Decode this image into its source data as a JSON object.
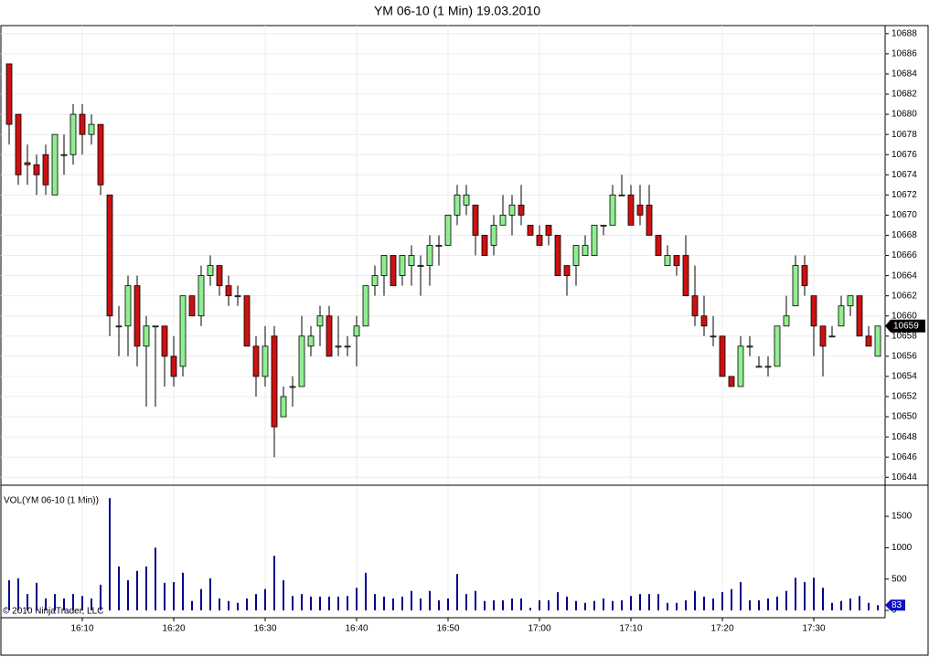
{
  "chart_data": [
    {
      "type": "candlestick",
      "title": "YM 06-10 (1 Min)  19.03.2010",
      "categories": [
        null,
        null,
        null,
        null,
        null,
        null,
        null,
        null,
        "16:10",
        null,
        null,
        null,
        null,
        null,
        null,
        null,
        null,
        null,
        "16:20",
        null,
        null,
        null,
        null,
        null,
        null,
        null,
        null,
        null,
        "16:30",
        null,
        null,
        null,
        null,
        null,
        null,
        null,
        null,
        null,
        "16:40",
        null,
        null,
        null,
        null,
        null,
        null,
        null,
        null,
        null,
        "16:50",
        null,
        null,
        null,
        null,
        null,
        null,
        null,
        null,
        null,
        "17:00",
        null,
        null,
        null,
        null,
        null,
        null,
        null,
        null,
        null,
        "17:10",
        null,
        null,
        null,
        null,
        null,
        null,
        null,
        null,
        null,
        "17:20",
        null,
        null,
        null,
        null,
        null,
        null,
        null,
        null,
        null,
        "17:30",
        null,
        null,
        null,
        null,
        null,
        null,
        null
      ],
      "open": [
        10685,
        10680,
        10675.2,
        10675,
        10676,
        10672,
        10676,
        10676,
        10680,
        10678,
        10679,
        10672,
        10659,
        10659,
        10663,
        10657,
        10659,
        10659,
        10656,
        10655,
        10662,
        10660,
        10664,
        10665,
        10663,
        10662,
        10662,
        10657,
        10654,
        10658,
        10650,
        10653,
        10653,
        10657,
        10659,
        10660,
        10657,
        10657,
        10658,
        10659,
        10663,
        10664,
        10666,
        10664,
        10665,
        10665,
        10665,
        10667,
        10667,
        10670,
        10671,
        10671,
        10668,
        10667,
        10669,
        10670,
        10671,
        10669,
        10668,
        10669,
        10668,
        10665,
        10665,
        10666,
        10666,
        10669,
        10669,
        10672,
        10672,
        10671,
        10671,
        10668,
        10665,
        10666,
        10666,
        10662,
        10660,
        10658,
        10658,
        10654,
        10653,
        10657,
        10655,
        10655,
        10655,
        10659,
        10661,
        10665,
        10662,
        10659,
        10658,
        10659,
        10661,
        10662,
        10658,
        10656
      ],
      "high": [
        10685,
        10680,
        10677,
        10676,
        10677,
        10678,
        10678,
        10681,
        10681,
        10680,
        10679,
        10672,
        10661,
        10664,
        10664,
        10660,
        10659,
        10659,
        10658,
        10662,
        10662,
        10665,
        10666,
        10665,
        10664,
        10663,
        10662,
        10658,
        10659,
        10659,
        10653,
        10654,
        10660,
        10659,
        10661,
        10661,
        10660,
        10658,
        10660,
        10663,
        10665,
        10666,
        10666,
        10666,
        10667,
        10666,
        10668,
        10668,
        10670,
        10673,
        10673,
        10671,
        10668,
        10670,
        10672,
        10672,
        10673,
        10669,
        10669,
        10669,
        10668,
        10665,
        10667,
        10668,
        10669,
        10669,
        10673,
        10674,
        10673,
        10673,
        10673,
        10668,
        10667,
        10666,
        10668,
        10665,
        10662,
        10660,
        10658,
        10654,
        10658,
        10658,
        10656,
        10656,
        10659,
        10662,
        10666,
        10666,
        10662,
        10659,
        10659,
        10662,
        10662,
        10662,
        10659,
        10659
      ],
      "low": [
        10677,
        10673,
        10673,
        10672,
        10672,
        10672,
        10674,
        10675,
        10676,
        10677,
        10672,
        10658,
        10656,
        10656,
        10655,
        10651,
        10651,
        10653,
        10653,
        10654,
        10660,
        10659,
        10663,
        10662,
        10661,
        10661,
        10657,
        10652,
        10653,
        10646,
        10650,
        10651,
        10653,
        10656,
        10657,
        10656,
        10656,
        10656,
        10655,
        10659,
        10662,
        10662,
        10663,
        10663,
        10663,
        10662,
        10663,
        10665,
        10667,
        10669,
        10670,
        10666,
        10666,
        10666,
        10669,
        10668,
        10669,
        10668,
        10667,
        10667,
        10664,
        10662,
        10663,
        10666,
        10666,
        10668,
        10669,
        10672,
        10669,
        10669,
        10668,
        10666,
        10665,
        10664,
        10662,
        10659,
        10658,
        10657,
        10654,
        10653,
        10653,
        10656,
        10655,
        10654,
        10655,
        10659,
        10661,
        10662,
        10656,
        10654,
        10658,
        10659,
        10660,
        10658,
        10657,
        10656
      ],
      "close": [
        10679,
        10674,
        10675,
        10674,
        10673,
        10678,
        10676,
        10680,
        10678,
        10679,
        10673,
        10660,
        10659,
        10663,
        10657,
        10659,
        10659,
        10656,
        10654,
        10662,
        10660,
        10664,
        10665,
        10663,
        10662,
        10662,
        10657,
        10654,
        10657,
        10649,
        10652,
        10653,
        10658,
        10658,
        10660,
        10656,
        10657,
        10657,
        10659,
        10663,
        10664,
        10666,
        10663,
        10666,
        10666,
        10665,
        10667,
        10667,
        10670,
        10672,
        10672,
        10668,
        10666,
        10669,
        10670,
        10671,
        10670,
        10668,
        10667,
        10668,
        10664,
        10664,
        10667,
        10667,
        10669,
        10669,
        10672,
        10672,
        10669,
        10670,
        10668,
        10666,
        10666,
        10665,
        10662,
        10660,
        10659,
        10658,
        10654,
        10653,
        10657,
        10657,
        10655,
        10655,
        10659,
        10660,
        10665,
        10663,
        10659,
        10657,
        10658,
        10661,
        10662,
        10658,
        10657,
        10659
      ],
      "up_color": "#90ee90",
      "down_color": "#cc1111",
      "ylim": [
        10643.3,
        10688.8
      ],
      "yticks": [
        10644,
        10646,
        10648,
        10650,
        10652,
        10654,
        10656,
        10658,
        10660,
        10662,
        10664,
        10666,
        10668,
        10670,
        10672,
        10674,
        10676,
        10678,
        10680,
        10682,
        10684,
        10686,
        10688
      ],
      "grid": true
    },
    {
      "type": "bar",
      "title": "VOL(YM 06-10 (1 Min))",
      "values": [
        480,
        510,
        260,
        440,
        190,
        260,
        190,
        260,
        230,
        190,
        410,
        1790,
        700,
        480,
        630,
        700,
        1000,
        440,
        450,
        600,
        150,
        340,
        510,
        190,
        150,
        120,
        190,
        260,
        340,
        870,
        480,
        230,
        260,
        220,
        220,
        220,
        220,
        230,
        360,
        600,
        260,
        220,
        190,
        220,
        310,
        190,
        310,
        160,
        190,
        580,
        260,
        310,
        150,
        160,
        160,
        190,
        190,
        40,
        160,
        160,
        290,
        220,
        150,
        120,
        150,
        190,
        150,
        160,
        230,
        260,
        260,
        260,
        120,
        120,
        160,
        310,
        220,
        190,
        290,
        340,
        450,
        160,
        160,
        190,
        220,
        310,
        520,
        450,
        520,
        360,
        120,
        150,
        190,
        230,
        120,
        83
      ],
      "color": "#00008b",
      "ylim": [
        0,
        1982
      ],
      "yticks": [
        0,
        500,
        1000,
        1500
      ]
    }
  ],
  "copyright": "© 2010 NinjaTrader, LLC"
}
